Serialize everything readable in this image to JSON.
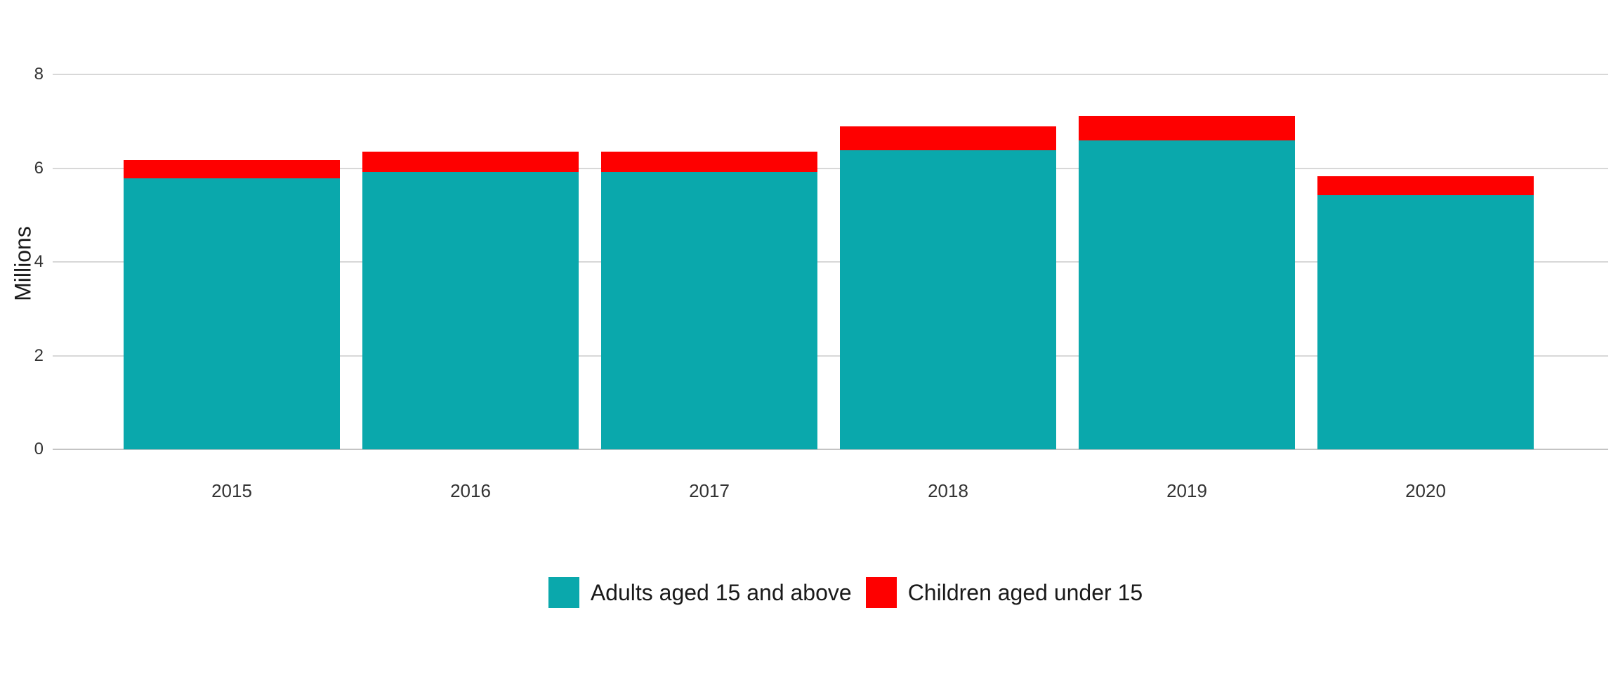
{
  "chart_data": {
    "type": "bar",
    "stacked": true,
    "title": "",
    "xlabel": "",
    "ylabel": "Millions",
    "categories": [
      "2015",
      "2016",
      "2017",
      "2018",
      "2019",
      "2020"
    ],
    "series": [
      {
        "name": "Adults aged 15 and above",
        "color": "#0aa8ac",
        "values": [
          5.78,
          5.92,
          5.92,
          6.38,
          6.59,
          5.42
        ]
      },
      {
        "name": "Children aged under 15",
        "color": "#fe0000",
        "values": [
          0.39,
          0.43,
          0.43,
          0.51,
          0.53,
          0.41
        ]
      }
    ],
    "totals": [
      6.17,
      6.35,
      6.35,
      6.89,
      7.12,
      5.83
    ],
    "ylim": [
      0,
      8
    ],
    "yticks": [
      0,
      2,
      4,
      6,
      8
    ],
    "grid": true,
    "grid_color": "#d8d8d8",
    "zero_line_color": "#c4c4c4",
    "text_color": "#333333",
    "legend_position": "bottom"
  },
  "legend": {
    "items": [
      {
        "label": "Adults aged 15 and above",
        "color": "#0aa8ac"
      },
      {
        "label": "Children aged under 15",
        "color": "#fe0000"
      }
    ]
  }
}
